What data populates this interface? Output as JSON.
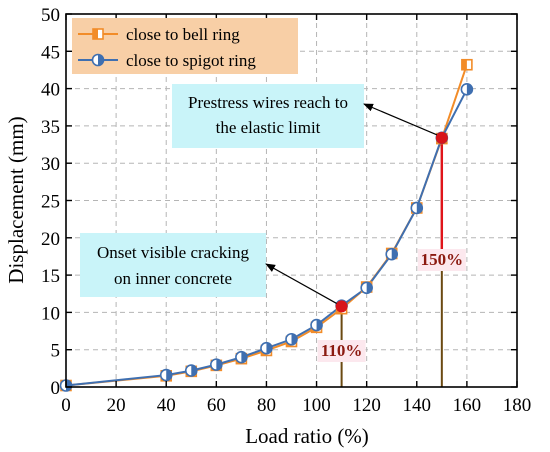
{
  "chart_data": {
    "type": "line",
    "xlabel": "Load ratio (%)",
    "ylabel": "Displacement (mm)",
    "xlim": [
      0,
      180
    ],
    "ylim": [
      0,
      50
    ],
    "xticks": [
      0,
      20,
      40,
      60,
      80,
      100,
      120,
      140,
      160,
      180
    ],
    "yticks": [
      0,
      5,
      10,
      15,
      20,
      25,
      30,
      35,
      40,
      45,
      50
    ],
    "grid": true,
    "legend_position": "top-left",
    "series": [
      {
        "name": "close to bell ring",
        "color": "#f28c28",
        "marker": "half-filled-square",
        "x": [
          0,
          40,
          50,
          60,
          70,
          80,
          90,
          100,
          110,
          120,
          130,
          140,
          150,
          160
        ],
        "y": [
          0.2,
          1.5,
          2.1,
          2.9,
          3.8,
          4.9,
          6.1,
          8.0,
          10.5,
          13.4,
          17.9,
          24.0,
          33.3,
          43.2
        ]
      },
      {
        "name": "close to spigot ring",
        "color": "#3f6fb0",
        "marker": "half-filled-circle",
        "x": [
          0,
          40,
          50,
          60,
          70,
          80,
          90,
          100,
          110,
          120,
          130,
          140,
          150,
          160
        ],
        "y": [
          0.2,
          1.6,
          2.2,
          3.0,
          4.0,
          5.2,
          6.4,
          8.3,
          10.9,
          13.3,
          17.8,
          24.0,
          33.4,
          39.9
        ]
      }
    ],
    "annotations": [
      {
        "text": [
          "Prestress wires reach to",
          "the elastic limit"
        ],
        "point": [
          150,
          33.4
        ]
      },
      {
        "text": [
          "Onset visible cracking",
          "on inner concrete"
        ],
        "point": [
          110,
          10.8
        ]
      }
    ],
    "highlight_points": [
      {
        "x": 110,
        "y": 10.8,
        "label": "110%"
      },
      {
        "x": 150,
        "y": 33.4,
        "label": "150%"
      }
    ],
    "colors": {
      "highlight_point": "#d8141a",
      "drop_line_dark": "#6b4a12",
      "drop_line_red": "#e0141a",
      "pct_label": "#8b1a10",
      "pct_label_bg": "#fce8ee",
      "annotation_bg": "#c9f4f9",
      "legend_bg": "#f8cfa6"
    }
  }
}
